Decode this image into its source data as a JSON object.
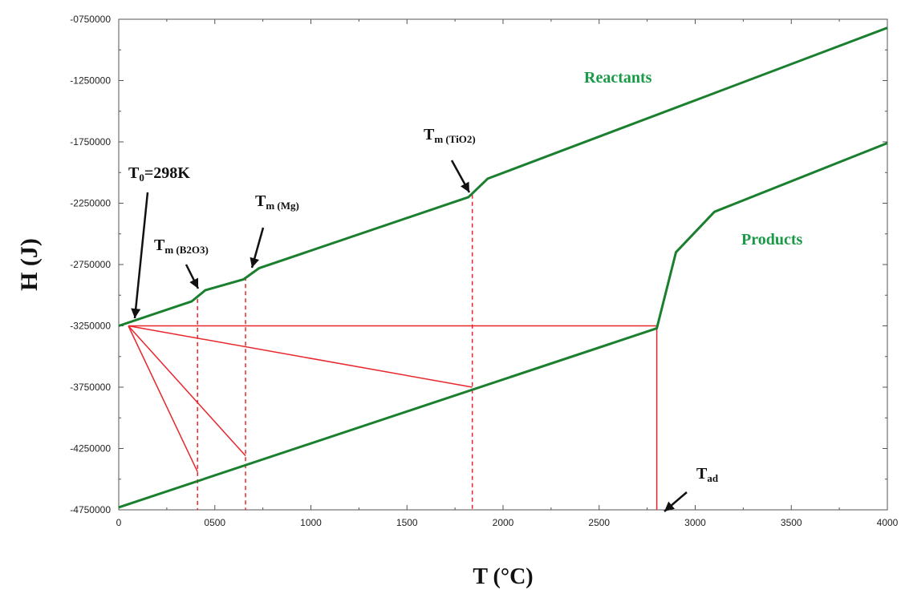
{
  "chart_data": {
    "type": "line",
    "title": "",
    "xlabel": "T (°C)",
    "ylabel": "H (J)",
    "xlim": [
      0,
      4000
    ],
    "ylim": [
      -4750000,
      -750000
    ],
    "x_ticks": [
      0,
      500,
      1000,
      1500,
      2000,
      2500,
      3000,
      3500,
      4000
    ],
    "x_tick_labels": [
      "0",
      "0500",
      "1000",
      "1500",
      "2000",
      "2500",
      "3000",
      "3500",
      "4000"
    ],
    "y_ticks": [
      -750000,
      -1250000,
      -1750000,
      -2250000,
      -2750000,
      -3250000,
      -3750000,
      -4250000,
      -4750000
    ],
    "y_tick_labels": [
      "-0750000",
      "-1250000",
      "-1750000",
      "-2250000",
      "-2750000",
      "-3250000",
      "-3750000",
      "-4250000",
      "-4750000"
    ],
    "grid": false,
    "series": [
      {
        "name": "Reactants",
        "color": "#1a7f2e",
        "points": [
          {
            "x": 0,
            "y": -3250000
          },
          {
            "x": 380,
            "y": -3050000
          },
          {
            "x": 450,
            "y": -2960000
          },
          {
            "x": 650,
            "y": -2870000
          },
          {
            "x": 730,
            "y": -2780000
          },
          {
            "x": 1820,
            "y": -2200000
          },
          {
            "x": 1920,
            "y": -2050000
          },
          {
            "x": 4000,
            "y": -820000
          }
        ]
      },
      {
        "name": "Products",
        "color": "#1a7f2e",
        "points": [
          {
            "x": 0,
            "y": -4730000
          },
          {
            "x": 2800,
            "y": -3270000
          },
          {
            "x": 2900,
            "y": -2650000
          },
          {
            "x": 3100,
            "y": -2320000
          },
          {
            "x": 4000,
            "y": -1760000
          }
        ]
      }
    ],
    "construction_lines": {
      "color": "#e8262b",
      "solid": [
        {
          "from": [
            50,
            -3250000
          ],
          "to": [
            2800,
            -3250000
          ]
        },
        {
          "from": [
            50,
            -3250000
          ],
          "to": [
            410,
            -4440000
          ]
        },
        {
          "from": [
            50,
            -3250000
          ],
          "to": [
            660,
            -4310000
          ]
        },
        {
          "from": [
            50,
            -3250000
          ],
          "to": [
            1840,
            -3750000
          ]
        },
        {
          "from": [
            2800,
            -3250000
          ],
          "to": [
            2800,
            -4750000
          ]
        }
      ],
      "dashed": [
        {
          "from": [
            410,
            -3030000
          ],
          "to": [
            410,
            -4750000
          ]
        },
        {
          "from": [
            660,
            -2850000
          ],
          "to": [
            660,
            -4750000
          ]
        },
        {
          "from": [
            1840,
            -2180000
          ],
          "to": [
            1840,
            -4750000
          ]
        }
      ]
    },
    "annotations": [
      {
        "text_main": "T",
        "text_sub": "0",
        "text_rest": "=298K",
        "x": 50,
        "y": -3250000
      },
      {
        "text_main": "T",
        "text_sub": "m (B2O3)",
        "text_rest": "",
        "x": 410,
        "y": -3030000
      },
      {
        "text_main": "T",
        "text_sub": "m (Mg)",
        "text_rest": "",
        "x": 690,
        "y": -2820000
      },
      {
        "text_main": "T",
        "text_sub": "m (TiO2)",
        "text_rest": "",
        "x": 1830,
        "y": -2190000
      },
      {
        "text_main": "T",
        "text_sub": "ad",
        "text_rest": "",
        "x": 2800,
        "y": -4750000
      }
    ]
  }
}
